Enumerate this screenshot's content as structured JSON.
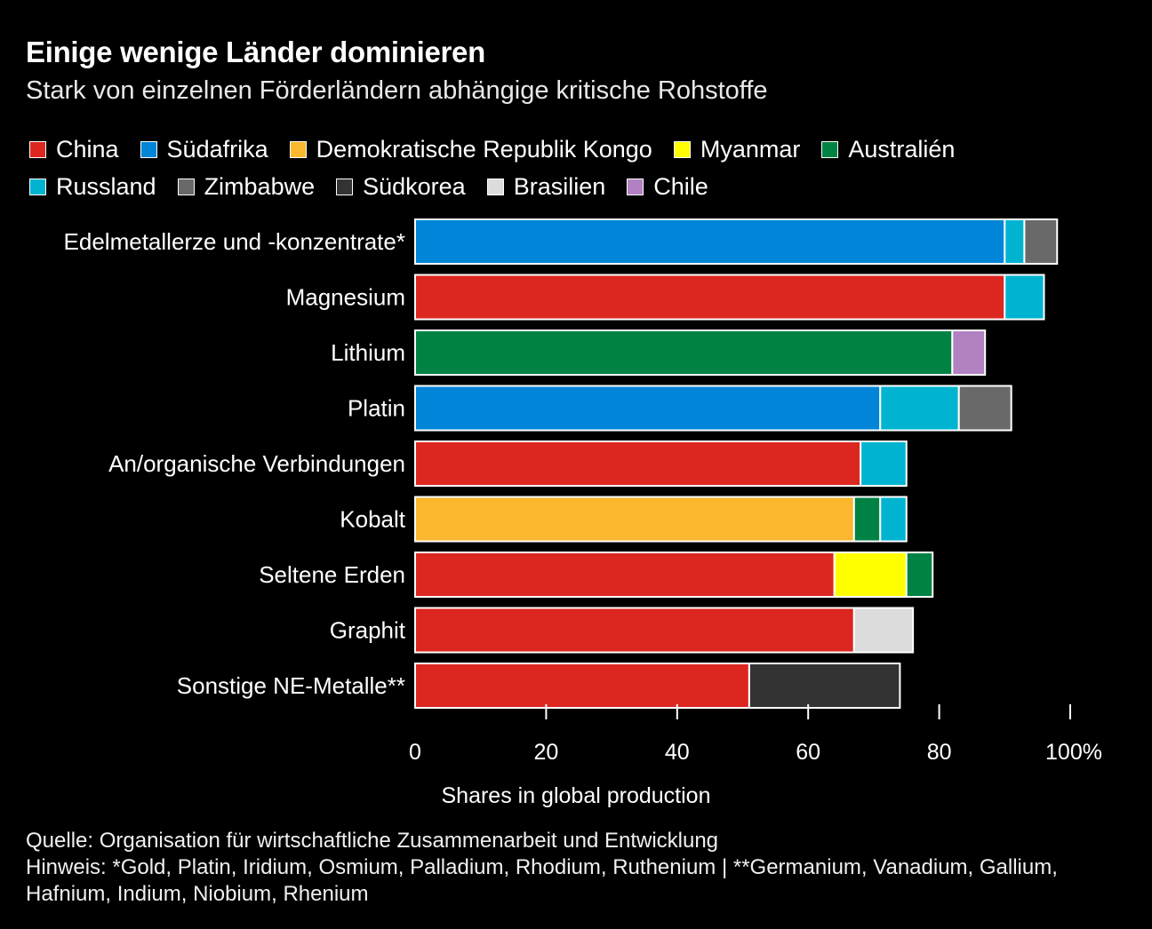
{
  "header": {
    "title": "Einige wenige Länder dominieren",
    "subtitle": "Stark von einzelnen Förderländern abhängige kritische Rohstoffe"
  },
  "legend": {
    "rows": [
      [
        {
          "name": "China",
          "color": "#dc2620"
        },
        {
          "name": "Südafrika",
          "color": "#0085d8"
        },
        {
          "name": "Demokratische Republik Kongo",
          "color": "#fbb72e"
        },
        {
          "name": "Myanmar",
          "color": "#ffff00"
        },
        {
          "name": "Australién",
          "color": "#008244"
        }
      ],
      [
        {
          "name": "Russland",
          "color": "#00b4d1"
        },
        {
          "name": "Zimbabwe",
          "color": "#696969"
        },
        {
          "name": "Südkorea",
          "color": "#333333"
        },
        {
          "name": "Brasilien",
          "color": "#dcdcdc"
        },
        {
          "name": "Chile",
          "color": "#b281c1"
        }
      ]
    ]
  },
  "chart_data": {
    "type": "bar",
    "orientation": "horizontal",
    "stacked": true,
    "xlabel": "Shares in global production",
    "xlim": [
      0,
      100
    ],
    "xticks": [
      {
        "value": 0,
        "label": "0"
      },
      {
        "value": 20,
        "label": "20"
      },
      {
        "value": 40,
        "label": "40"
      },
      {
        "value": 60,
        "label": "60"
      },
      {
        "value": 80,
        "label": "80"
      },
      {
        "value": 100,
        "label": "100%"
      }
    ],
    "categories": [
      "Edelmetallerze und -konzentrate*",
      "Magnesium",
      "Lithium",
      "Platin",
      "An/organische Verbindungen",
      "Kobalt",
      "Seltene Erden",
      "Graphit",
      "Sonstige NE-Metalle**"
    ],
    "series": [
      {
        "name": "China",
        "color": "#dc2620",
        "values": [
          0,
          90,
          0,
          0,
          68,
          0,
          64,
          67,
          51
        ]
      },
      {
        "name": "Südafrika",
        "color": "#0085d8",
        "values": [
          90,
          0,
          0,
          71,
          0,
          0,
          0,
          0,
          0
        ]
      },
      {
        "name": "Demokratische Republik Kongo",
        "color": "#fbb72e",
        "values": [
          0,
          0,
          0,
          0,
          0,
          67,
          0,
          0,
          0
        ]
      },
      {
        "name": "Myanmar",
        "color": "#ffff00",
        "values": [
          0,
          0,
          0,
          0,
          0,
          0,
          11,
          0,
          0
        ]
      },
      {
        "name": "Australién",
        "color": "#008244",
        "values": [
          0,
          0,
          82,
          0,
          0,
          4,
          4,
          0,
          0
        ]
      },
      {
        "name": "Russland",
        "color": "#00b4d1",
        "values": [
          3,
          6,
          0,
          12,
          7,
          4,
          0,
          0,
          0
        ]
      },
      {
        "name": "Zimbabwe",
        "color": "#696969",
        "values": [
          5,
          0,
          0,
          8,
          0,
          0,
          0,
          0,
          0
        ]
      },
      {
        "name": "Südkorea",
        "color": "#333333",
        "values": [
          0,
          0,
          0,
          0,
          0,
          0,
          0,
          0,
          23
        ]
      },
      {
        "name": "Brasilien",
        "color": "#dcdcdc",
        "values": [
          0,
          0,
          0,
          0,
          0,
          0,
          0,
          9,
          0
        ]
      },
      {
        "name": "Chile",
        "color": "#b281c1",
        "values": [
          0,
          0,
          5,
          0,
          0,
          0,
          0,
          0,
          0
        ]
      }
    ],
    "stack_order": [
      [
        "Südafrika",
        "Russland",
        "Zimbabwe"
      ],
      [
        "China",
        "Russland"
      ],
      [
        "Australién",
        "Chile"
      ],
      [
        "Südafrika",
        "Russland",
        "Zimbabwe"
      ],
      [
        "China",
        "Russland"
      ],
      [
        "Demokratische Republik Kongo",
        "Australién",
        "Russland"
      ],
      [
        "China",
        "Myanmar",
        "Australién"
      ],
      [
        "China",
        "Brasilien"
      ],
      [
        "China",
        "Südkorea"
      ]
    ]
  },
  "footer": {
    "source": "Quelle: Organisation für wirtschaftliche Zusammenarbeit und Entwicklung",
    "note": "Hinweis: *Gold, Platin, Iridium, Osmium, Palladium, Rhodium, Ruthenium | **Germanium, Vanadium, Gallium, Hafnium, Indium, Niobium, Rhenium"
  }
}
